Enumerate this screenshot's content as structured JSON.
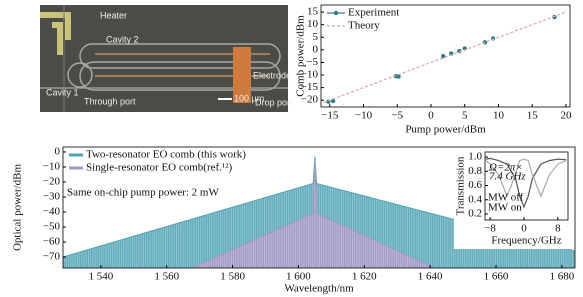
{
  "image": {
    "labels": {
      "heater": "Heater",
      "cavity2": "Cavity 2",
      "cavity1": "Cavity 1",
      "through_port": "Through port",
      "electrode": "Electrode",
      "scale_bar": "100 μm",
      "drop_port": "Drop port"
    }
  },
  "chart_data": [
    {
      "type": "scatter",
      "xlabel": "Pump power/dBm",
      "ylabel": "Comb power/dBm",
      "xlim": [
        -16.3,
        20.6
      ],
      "ylim": [
        -22.7,
        17.8
      ],
      "xticks": [
        {
          "value": -15,
          "label": "−15"
        },
        {
          "value": -10,
          "label": "−10"
        },
        {
          "value": -5,
          "label": "−5"
        },
        0,
        5,
        10,
        15,
        20
      ],
      "yticks": [
        {
          "value": -20,
          "label": "−20"
        },
        {
          "value": -15,
          "label": "−15"
        },
        {
          "value": -10,
          "label": "−10"
        },
        {
          "value": -5,
          "label": "−5"
        },
        0,
        5,
        10,
        15
      ],
      "legend": "upper left",
      "series": [
        {
          "name": "Experiment",
          "color": "#2e7d8c",
          "style": "markers",
          "x": [
            -14.5,
            -15.2,
            -5.2,
            -4.8,
            1.8,
            3,
            4.2,
            5,
            8,
            9.2,
            18.3
          ],
          "values": [
            -20.3,
            -20.6,
            -10.4,
            -10.6,
            -2.5,
            -1.5,
            -0.5,
            0.5,
            3,
            4.5,
            13
          ]
        },
        {
          "name": "Theory",
          "color": "#e3a3a3",
          "style": "dashed",
          "x": [
            -16,
            20
          ],
          "values": [
            -21,
            15
          ]
        }
      ]
    },
    {
      "type": "area",
      "xlabel": "Wavelength/nm",
      "ylabel": "Optical power/dBm",
      "xlim": [
        1528.5,
        1684
      ],
      "ylim": [
        -77.3,
        3.3
      ],
      "xticks": [
        {
          "value": 1540,
          "label": "1 540"
        },
        {
          "value": 1560,
          "label": "1 560"
        },
        {
          "value": 1580,
          "label": "1 580"
        },
        {
          "value": 1600,
          "label": "1 600"
        },
        {
          "value": 1620,
          "label": "1 620"
        },
        {
          "value": 1640,
          "label": "1 640"
        },
        {
          "value": 1660,
          "label": "1 660"
        },
        {
          "value": 1680,
          "label": "1 680"
        }
      ],
      "yticks": [
        0,
        {
          "value": -10,
          "label": "−10"
        },
        {
          "value": -20,
          "label": "−20"
        },
        {
          "value": -30,
          "label": "−30"
        },
        {
          "value": -40,
          "label": "−40"
        },
        {
          "value": -50,
          "label": "−50"
        },
        {
          "value": -60,
          "label": "−60"
        },
        {
          "value": -70,
          "label": "−70"
        }
      ],
      "legend": "upper left",
      "annotation": "Same on-chip pump power: 2 mW",
      "series": [
        {
          "name": "Two-resonator EO comb (this work)",
          "color": "#4fa3b4",
          "x": [
            1528.5,
            1604.5,
            1605,
            1605.5,
            1684
          ],
          "values": [
            -70,
            -21,
            -3,
            -21,
            -66
          ]
        },
        {
          "name": "Single-resonator EO comb(ref.¹²)",
          "color": "#a898c4",
          "x": [
            1568,
            1604.5,
            1605,
            1605.5,
            1641
          ],
          "values": [
            -77,
            -41,
            -5,
            -41,
            -77
          ]
        }
      ]
    },
    {
      "type": "line",
      "xlabel": "Frequency/GHz",
      "ylabel": "Transmission",
      "xlim": [
        -9.2,
        10.4
      ],
      "ylim": [
        0.116,
        1.07
      ],
      "xticks": [
        {
          "value": -8,
          "label": "−8"
        },
        0,
        8
      ],
      "yticks": [
        0.2,
        0.4,
        0.6,
        0.8,
        {
          "value": 1,
          "label": "1.0"
        }
      ],
      "annotation_lines": [
        "Ω=2π×",
        "7.4 GHz"
      ],
      "legend": "lower left",
      "series": [
        {
          "name": "MW off",
          "color": "#555555",
          "x": [
            -9,
            -8,
            -6,
            -4,
            -2,
            -1,
            0,
            1,
            2,
            4,
            6,
            8,
            10
          ],
          "values": [
            0.97,
            0.98,
            0.95,
            0.9,
            0.7,
            0.45,
            0.3,
            0.45,
            0.7,
            0.9,
            0.95,
            0.97,
            0.96
          ]
        },
        {
          "name": "MW on",
          "color": "#aaaaaa",
          "x": [
            -9,
            -8,
            -6,
            -4,
            -2,
            -1,
            0,
            1,
            2,
            4,
            6,
            8,
            10
          ],
          "values": [
            0.95,
            0.9,
            0.75,
            0.45,
            0.75,
            0.95,
            0.97,
            0.95,
            0.75,
            0.45,
            0.75,
            0.9,
            0.95
          ]
        }
      ]
    }
  ]
}
